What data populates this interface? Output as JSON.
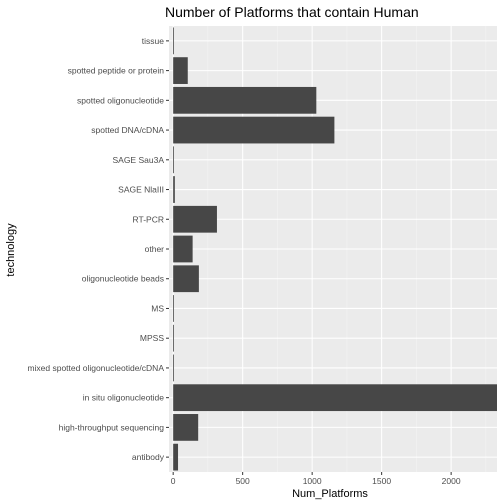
{
  "chart_data": {
    "type": "bar",
    "orientation": "horizontal",
    "title": "Number of Platforms that contain Human",
    "xlabel": "Num_Platforms",
    "ylabel": "technology",
    "xlim": [
      -30,
      2330
    ],
    "xticks": [
      0,
      500,
      1000,
      1500,
      2000
    ],
    "grid": true,
    "legend": "none",
    "categories": [
      "antibody",
      "high-throughput sequencing",
      "in situ oligonucleotide",
      "mixed spotted oligonucleotide/cDNA",
      "MPSS",
      "MS",
      "oligonucleotide beads",
      "other",
      "RT-PCR",
      "SAGE NlaIII",
      "SAGE Sau3A",
      "spotted DNA/cDNA",
      "spotted oligonucleotide",
      "spotted peptide or protein",
      "tissue"
    ],
    "values": [
      35,
      180,
      2330,
      5,
      5,
      2,
      185,
      140,
      315,
      12,
      3,
      1160,
      1030,
      105,
      2
    ],
    "colors": {
      "bar": "#474747",
      "panel": "#ebebeb",
      "grid_major": "#ffffff",
      "tick_label": "#4d4d4d"
    }
  }
}
